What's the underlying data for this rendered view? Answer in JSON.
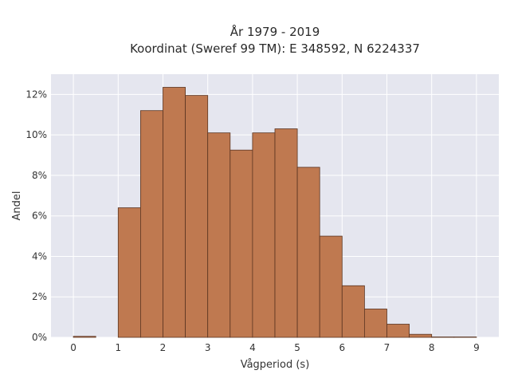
{
  "chart_data": {
    "type": "bar",
    "title_line1": "År 1979 - 2019",
    "title_line2": "Koordinat (Sweref 99 TM): E 348592, N 6224337",
    "xlabel": "Vågperiod (s)",
    "ylabel": "Andel",
    "xlim": [
      -0.5,
      9.5
    ],
    "ylim": [
      0,
      13
    ],
    "x_ticks": [
      0,
      1,
      2,
      3,
      4,
      5,
      6,
      7,
      8,
      9
    ],
    "y_ticks": [
      0,
      2,
      4,
      6,
      8,
      10,
      12
    ],
    "y_tick_suffix": "%",
    "grid": true,
    "bin_width": 0.5,
    "bins": [
      {
        "start": 0.0,
        "end": 0.5,
        "value": 0.05
      },
      {
        "start": 0.5,
        "end": 1.0,
        "value": 0.0
      },
      {
        "start": 1.0,
        "end": 1.5,
        "value": 6.4
      },
      {
        "start": 1.5,
        "end": 2.0,
        "value": 11.2
      },
      {
        "start": 2.0,
        "end": 2.5,
        "value": 12.35
      },
      {
        "start": 2.5,
        "end": 3.0,
        "value": 11.95
      },
      {
        "start": 3.0,
        "end": 3.5,
        "value": 10.1
      },
      {
        "start": 3.5,
        "end": 4.0,
        "value": 9.25
      },
      {
        "start": 4.0,
        "end": 4.5,
        "value": 10.1
      },
      {
        "start": 4.5,
        "end": 5.0,
        "value": 10.3
      },
      {
        "start": 5.0,
        "end": 5.5,
        "value": 8.4
      },
      {
        "start": 5.5,
        "end": 6.0,
        "value": 5.0
      },
      {
        "start": 6.0,
        "end": 6.5,
        "value": 2.55
      },
      {
        "start": 6.5,
        "end": 7.0,
        "value": 1.4
      },
      {
        "start": 7.0,
        "end": 7.5,
        "value": 0.65
      },
      {
        "start": 7.5,
        "end": 8.0,
        "value": 0.15
      },
      {
        "start": 8.0,
        "end": 8.5,
        "value": 0.02
      },
      {
        "start": 8.5,
        "end": 9.0,
        "value": 0.02
      }
    ],
    "colors": {
      "bar_fill": "#bf7950",
      "bar_stroke": "#5a3420",
      "plot_background": "#e5e6ef",
      "grid": "#ffffff"
    }
  }
}
